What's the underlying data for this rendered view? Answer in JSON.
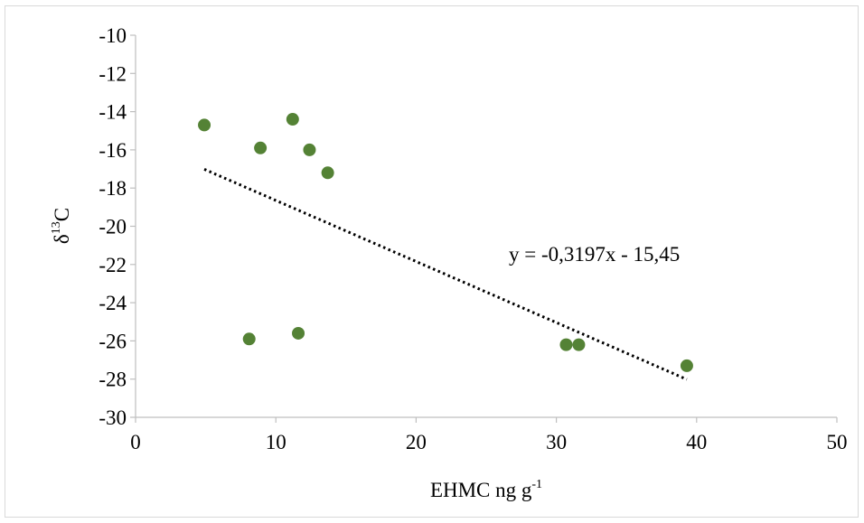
{
  "chart_data": {
    "type": "scatter",
    "xlim": [
      0,
      50
    ],
    "ylim": [
      -30,
      -10
    ],
    "x_ticks": [
      0,
      10,
      20,
      30,
      40,
      50
    ],
    "y_ticks": [
      -10,
      -12,
      -14,
      -16,
      -18,
      -20,
      -22,
      -24,
      -26,
      -28,
      -30
    ],
    "x_tick_labels": [
      "0",
      "10",
      "20",
      "30",
      "40",
      "50"
    ],
    "y_tick_labels": [
      "-10",
      "-12",
      "-14",
      "-16",
      "-18",
      "-20",
      "-22",
      "-24",
      "-26",
      "-28",
      "-30"
    ],
    "xlabel": {
      "main": "EHMC ng g",
      "sup": "-1"
    },
    "ylabel": {
      "main": "δ",
      "sup": "13",
      "tail": "C"
    },
    "grid": false,
    "marker_color": "#548235",
    "trendline_color": "#000000",
    "series": [
      {
        "x": [
          4.9,
          8.9,
          11.2,
          12.4,
          13.7,
          8.1,
          11.6,
          30.7,
          31.6,
          39.3
        ],
        "y": [
          -14.7,
          -15.9,
          -14.4,
          -16.0,
          -17.2,
          -25.9,
          -25.6,
          -26.2,
          -26.2,
          -27.3
        ]
      }
    ],
    "trendline": {
      "type": "linear",
      "slope": -0.3197,
      "intercept": -15.45,
      "x_range": [
        4.9,
        39.3
      ],
      "equation_label": "y = -0,3197x - 15,45"
    }
  }
}
